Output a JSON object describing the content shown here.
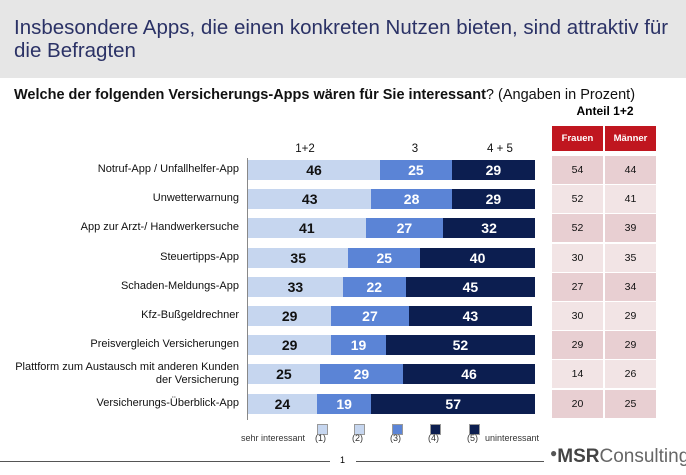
{
  "title": "Insbesondere Apps, die einen konkreten Nutzen bieten, sind attraktiv für die Befragten",
  "question_bold": "Welche der folgenden Versicherungs-Apps wären für Sie interessant",
  "question_rest": "? (Angaben in Prozent)",
  "table": {
    "title": "Anteil 1+2",
    "headers": [
      "Frauen",
      "Männer"
    ],
    "rows": [
      [
        "54",
        "44"
      ],
      [
        "52",
        "41"
      ],
      [
        "52",
        "39"
      ],
      [
        "30",
        "35"
      ],
      [
        "27",
        "34"
      ],
      [
        "30",
        "29"
      ],
      [
        "29",
        "29"
      ],
      [
        "14",
        "26"
      ],
      [
        "20",
        "25"
      ]
    ],
    "header_color": "#c0161f",
    "row_colors": [
      "#e8cfd2",
      "#f2e4e5"
    ]
  },
  "chart_data": {
    "type": "bar",
    "orientation": "horizontal",
    "stacked": true,
    "xlim": [
      0,
      100
    ],
    "column_headers": [
      "1+2",
      "3",
      "4 + 5"
    ],
    "categories": [
      "Notruf-App / Unfallhelfer-App",
      "Unwetterwarnung",
      "App zur Arzt-/ Handwerkersuche",
      "Steuertipps-App",
      "Schaden-Meldungs-App",
      "Kfz-Bußgeldrechner",
      "Preisvergleich Versicherungen",
      "Plattform zum Austausch mit anderen Kunden der Versicherung",
      "Versicherungs-Überblick-App"
    ],
    "series": [
      {
        "name": "1+2",
        "color": "#c6d6ef",
        "values": [
          46,
          43,
          41,
          35,
          33,
          29,
          29,
          25,
          24
        ]
      },
      {
        "name": "3",
        "color": "#5b84d6",
        "values": [
          25,
          28,
          27,
          25,
          22,
          27,
          19,
          29,
          19
        ]
      },
      {
        "name": "4 + 5",
        "color": "#0c1e50",
        "values": [
          29,
          29,
          32,
          40,
          45,
          43,
          52,
          46,
          57
        ]
      }
    ],
    "legend": {
      "left_label": "sehr interessant",
      "right_label": "uninteressant",
      "items": [
        {
          "label": "(1)",
          "color": "#c6d6ef"
        },
        {
          "label": "(2)",
          "color": "#c6d6ef"
        },
        {
          "label": "(3)",
          "color": "#5b84d6"
        },
        {
          "label": "(4)",
          "color": "#0c1e50"
        },
        {
          "label": "(5)",
          "color": "#0c1e50"
        }
      ],
      "placement": "bottom"
    }
  },
  "footer": {
    "page": "1",
    "logo": "MSR Consulting"
  }
}
